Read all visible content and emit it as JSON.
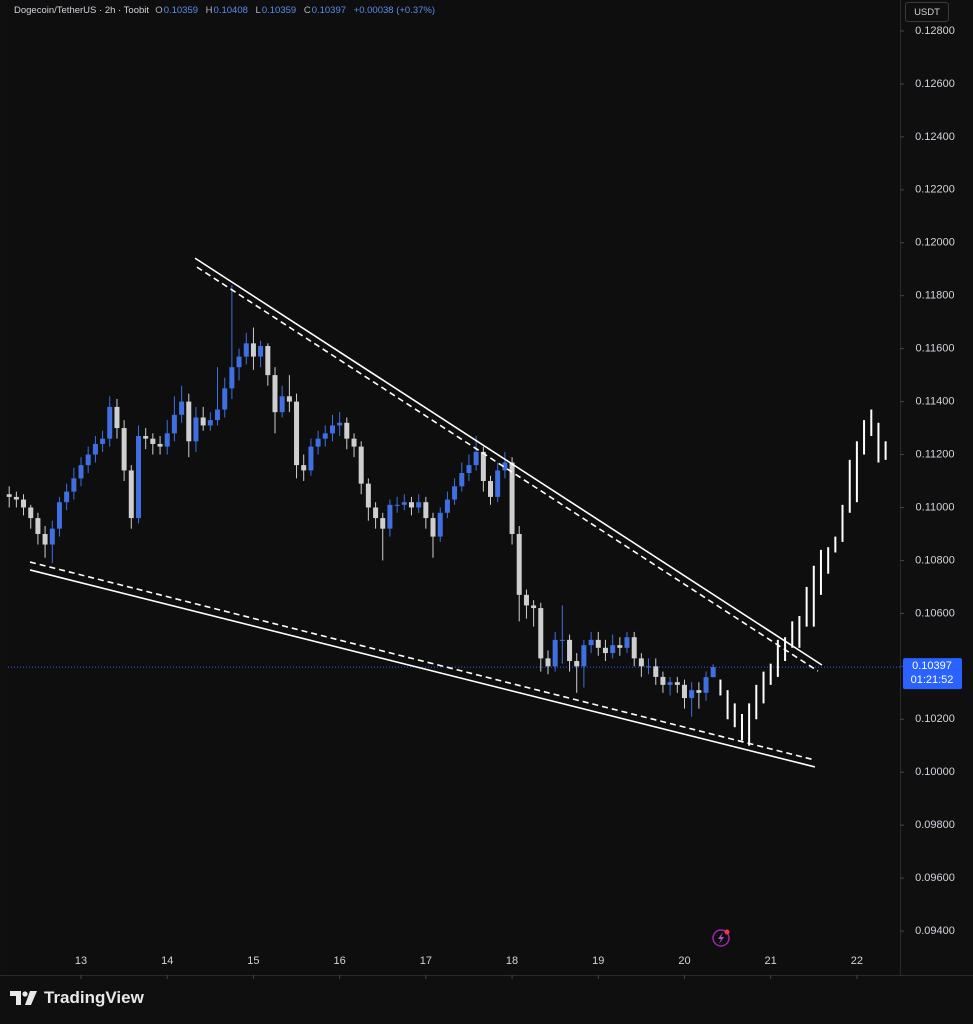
{
  "chart_data": {
    "type": "candlestick",
    "title": "Dogecoin/TetherUS · 2h · Toobit",
    "legend": {
      "o_key": "O",
      "o": "0.10359",
      "h_key": "H",
      "h": "0.10408",
      "l_key": "L",
      "l": "0.10359",
      "c_key": "C",
      "c": "0.10397",
      "change": "+0.00038 (+0.37%)"
    },
    "currency": "USDT",
    "brand": "TradingView",
    "up_color": "#3f6fe0",
    "down_color": "#cfcfcf",
    "x": [
      12.167,
      12.25,
      12.333,
      12.417,
      12.5,
      12.583,
      12.667,
      12.75,
      12.833,
      12.917,
      13,
      13.083,
      13.167,
      13.25,
      13.333,
      13.417,
      13.5,
      13.583,
      13.667,
      13.75,
      13.833,
      13.917,
      14,
      14.083,
      14.167,
      14.25,
      14.333,
      14.417,
      14.5,
      14.583,
      14.667,
      14.75,
      14.833,
      14.917,
      15,
      15.083,
      15.167,
      15.25,
      15.333,
      15.417,
      15.5,
      15.583,
      15.667,
      15.75,
      15.833,
      15.917,
      16,
      16.083,
      16.167,
      16.25,
      16.333,
      16.417,
      16.5,
      16.583,
      16.667,
      16.75,
      16.833,
      16.917,
      17,
      17.083,
      17.167,
      17.25,
      17.333,
      17.417,
      17.5,
      17.583,
      17.667,
      17.75,
      17.833,
      17.917,
      18,
      18.083,
      18.167,
      18.25,
      18.333,
      18.417,
      18.5,
      18.583,
      18.667,
      18.75,
      18.833,
      18.917,
      19,
      19.083,
      19.167,
      19.25,
      19.333,
      19.417,
      19.5,
      19.583,
      19.667,
      19.75,
      19.833,
      19.917,
      20,
      20.083,
      20.167,
      20.25,
      20.333
    ],
    "open": [
      0.1105,
      0.1104,
      0.1103,
      0.11,
      0.1096,
      0.109,
      0.1086,
      0.1092,
      0.1102,
      0.1106,
      0.1111,
      0.1116,
      0.112,
      0.1124,
      0.1126,
      0.1138,
      0.113,
      0.1114,
      0.1096,
      0.1127,
      0.1126,
      0.1124,
      0.1123,
      0.1128,
      0.1135,
      0.114,
      0.1125,
      0.1134,
      0.1131,
      0.1133,
      0.1137,
      0.1145,
      0.1153,
      0.1157,
      0.1162,
      0.1157,
      0.1161,
      0.115,
      0.1136,
      0.1142,
      0.114,
      0.1116,
      0.1114,
      0.1123,
      0.1126,
      0.1128,
      0.1131,
      0.1132,
      0.1126,
      0.1123,
      0.1109,
      0.11,
      0.1096,
      0.1092,
      0.1101,
      0.1101,
      0.1102,
      0.11,
      0.1102,
      0.1096,
      0.1089,
      0.1098,
      0.1103,
      0.1108,
      0.1113,
      0.1116,
      0.1121,
      0.111,
      0.1104,
      0.1114,
      0.1117,
      0.109,
      0.1067,
      0.1063,
      0.1062,
      0.1043,
      0.104,
      0.105,
      0.105,
      0.1042,
      0.104,
      0.1048,
      0.105,
      0.1047,
      0.1045,
      0.1048,
      0.1047,
      0.1051,
      0.1043,
      0.104,
      0.104,
      0.1036,
      0.1033,
      0.1034,
      0.1033,
      0.1028,
      0.1031,
      0.103,
      0.10359
    ],
    "high": [
      0.1108,
      0.1106,
      0.1105,
      0.1101,
      0.1098,
      0.1093,
      0.1095,
      0.1104,
      0.1109,
      0.1115,
      0.1119,
      0.1123,
      0.1127,
      0.1129,
      0.1142,
      0.1141,
      0.1133,
      0.1116,
      0.1131,
      0.113,
      0.1128,
      0.1127,
      0.1133,
      0.1142,
      0.1146,
      0.1143,
      0.1138,
      0.1138,
      0.1136,
      0.1153,
      0.1149,
      0.1184,
      0.116,
      0.1166,
      0.1168,
      0.1163,
      0.1162,
      0.1153,
      0.1146,
      0.115,
      0.1143,
      0.112,
      0.1126,
      0.1129,
      0.1131,
      0.1135,
      0.1136,
      0.1134,
      0.1128,
      0.1125,
      0.1111,
      0.1102,
      0.1098,
      0.1103,
      0.1104,
      0.1105,
      0.1104,
      0.1105,
      0.1104,
      0.1098,
      0.11,
      0.1106,
      0.1111,
      0.1117,
      0.112,
      0.1127,
      0.1123,
      0.1112,
      0.1117,
      0.1121,
      0.1119,
      0.1093,
      0.1069,
      0.1065,
      0.1064,
      0.1046,
      0.1053,
      0.1063,
      0.1052,
      0.1045,
      0.105,
      0.1053,
      0.1053,
      0.105,
      0.1052,
      0.1051,
      0.1053,
      0.1053,
      0.1045,
      0.1043,
      0.1043,
      0.1038,
      0.1036,
      0.1036,
      0.1035,
      0.1034,
      0.1034,
      0.1038,
      0.10408
    ],
    "low": [
      0.11,
      0.11,
      0.1097,
      0.1092,
      0.1086,
      0.1081,
      0.1079,
      0.1089,
      0.1099,
      0.1103,
      0.1108,
      0.1113,
      0.1117,
      0.1121,
      0.1123,
      0.1126,
      0.111,
      0.1092,
      0.1094,
      0.1122,
      0.112,
      0.112,
      0.112,
      0.1125,
      0.1132,
      0.1119,
      0.1121,
      0.1129,
      0.1129,
      0.1131,
      0.1134,
      0.1141,
      0.1148,
      0.1154,
      0.1152,
      0.1153,
      0.1146,
      0.1128,
      0.1134,
      0.1136,
      0.1111,
      0.111,
      0.1112,
      0.112,
      0.1123,
      0.1125,
      0.1127,
      0.1122,
      0.1119,
      0.1105,
      0.1095,
      0.1092,
      0.108,
      0.1089,
      0.1098,
      0.1099,
      0.1097,
      0.1098,
      0.1092,
      0.1081,
      0.1087,
      0.1096,
      0.1101,
      0.1106,
      0.111,
      0.1114,
      0.1106,
      0.1101,
      0.1102,
      0.1111,
      0.1086,
      0.1057,
      0.1058,
      0.1055,
      0.1038,
      0.1037,
      0.1038,
      0.1041,
      0.1038,
      0.103,
      0.1032,
      0.1045,
      0.1044,
      0.1042,
      0.1043,
      0.1044,
      0.1045,
      0.104,
      0.1036,
      0.1037,
      0.1033,
      0.103,
      0.1029,
      0.103,
      0.1024,
      0.1021,
      0.1024,
      0.1027,
      0.10359
    ],
    "close": [
      0.1104,
      0.1103,
      0.11,
      0.1096,
      0.109,
      0.1086,
      0.1092,
      0.1102,
      0.1106,
      0.1111,
      0.1116,
      0.112,
      0.1124,
      0.1126,
      0.1138,
      0.113,
      0.1114,
      0.1096,
      0.1127,
      0.1126,
      0.1124,
      0.1123,
      0.1128,
      0.1135,
      0.114,
      0.1125,
      0.1134,
      0.1131,
      0.1133,
      0.1137,
      0.1145,
      0.1153,
      0.1157,
      0.1162,
      0.1157,
      0.1161,
      0.115,
      0.1136,
      0.1142,
      0.114,
      0.1116,
      0.1114,
      0.1123,
      0.1126,
      0.1128,
      0.1131,
      0.1132,
      0.1126,
      0.1123,
      0.1109,
      0.11,
      0.1096,
      0.1092,
      0.1101,
      0.1101,
      0.1102,
      0.11,
      0.1102,
      0.1096,
      0.1089,
      0.1098,
      0.1103,
      0.1108,
      0.1113,
      0.1116,
      0.1121,
      0.111,
      0.1104,
      0.1114,
      0.1117,
      0.109,
      0.1067,
      0.1063,
      0.1062,
      0.1043,
      0.104,
      0.105,
      0.105,
      0.1042,
      0.104,
      0.1048,
      0.105,
      0.1047,
      0.1045,
      0.1048,
      0.1047,
      0.1051,
      0.1043,
      0.104,
      0.104,
      0.1036,
      0.1033,
      0.1034,
      0.1033,
      0.1028,
      0.1031,
      0.103,
      0.10359,
      0.10397
    ],
    "projection": {
      "color": "#ffffff",
      "x": [
        20.417,
        20.5,
        20.583,
        20.667,
        20.75,
        20.833,
        20.917,
        21,
        21.083,
        21.167,
        21.25,
        21.333,
        21.417,
        21.5,
        21.583,
        21.667,
        21.75,
        21.833,
        21.917,
        22,
        22.083,
        22.167,
        22.25,
        22.333
      ],
      "high": [
        0.1035,
        0.1031,
        0.1026,
        0.1022,
        0.1026,
        0.1033,
        0.1038,
        0.1041,
        0.105,
        0.1051,
        0.1057,
        0.1059,
        0.107,
        0.1078,
        0.1084,
        0.1085,
        0.1089,
        0.1101,
        0.1118,
        0.1125,
        0.1133,
        0.1137,
        0.1132,
        0.1125
      ],
      "low": [
        0.1029,
        0.102,
        0.1017,
        0.1012,
        0.101,
        0.102,
        0.1026,
        0.1033,
        0.1036,
        0.1042,
        0.1047,
        0.1047,
        0.1055,
        0.1055,
        0.1067,
        0.1075,
        0.1083,
        0.1087,
        0.1098,
        0.1102,
        0.112,
        0.1127,
        0.1117,
        0.1118
      ]
    },
    "trendlines": [
      {
        "style": "solid",
        "color": "#ffffff",
        "x": [
          14.322,
          21.594
        ],
        "y": [
          0.11942,
          0.10405
        ]
      },
      {
        "style": "dashed",
        "color": "#ffffff",
        "x": [
          14.345,
          21.548
        ],
        "y": [
          0.11908,
          0.10382
        ]
      },
      {
        "style": "solid",
        "color": "#ffffff",
        "x": [
          12.408,
          21.513
        ],
        "y": [
          0.10764,
          0.1002
        ]
      },
      {
        "style": "dashed",
        "color": "#ffffff",
        "x": [
          12.408,
          21.513
        ],
        "y": [
          0.10794,
          0.10046
        ]
      }
    ],
    "last_price": {
      "value": 0.10397,
      "label": "0.10397",
      "countdown": "01:21:52",
      "color": "#2962ff"
    },
    "xlim": [
      12.153,
      22.5
    ],
    "ylim": [
      0.09234,
      0.12917
    ],
    "xticks": [
      13,
      14,
      15,
      16,
      17,
      18,
      19,
      20,
      21,
      22
    ],
    "yticks": [
      {
        "value": 0.128,
        "label": "0.12800"
      },
      {
        "value": 0.126,
        "label": "0.12600"
      },
      {
        "value": 0.124,
        "label": "0.12400"
      },
      {
        "value": 0.122,
        "label": "0.12200"
      },
      {
        "value": 0.12,
        "label": "0.12000"
      },
      {
        "value": 0.118,
        "label": "0.11800"
      },
      {
        "value": 0.116,
        "label": "0.11600"
      },
      {
        "value": 0.114,
        "label": "0.11400"
      },
      {
        "value": 0.112,
        "label": "0.11200"
      },
      {
        "value": 0.11,
        "label": "0.11000"
      },
      {
        "value": 0.108,
        "label": "0.10800"
      },
      {
        "value": 0.106,
        "label": "0.10600"
      },
      {
        "value": 0.104,
        "label": "0.10400"
      },
      {
        "value": 0.102,
        "label": "0.10200"
      },
      {
        "value": 0.1,
        "label": "0.10000"
      },
      {
        "value": 0.098,
        "label": "0.09800"
      },
      {
        "value": 0.096,
        "label": "0.09600"
      },
      {
        "value": 0.094,
        "label": "0.09400"
      }
    ],
    "grid": false
  }
}
